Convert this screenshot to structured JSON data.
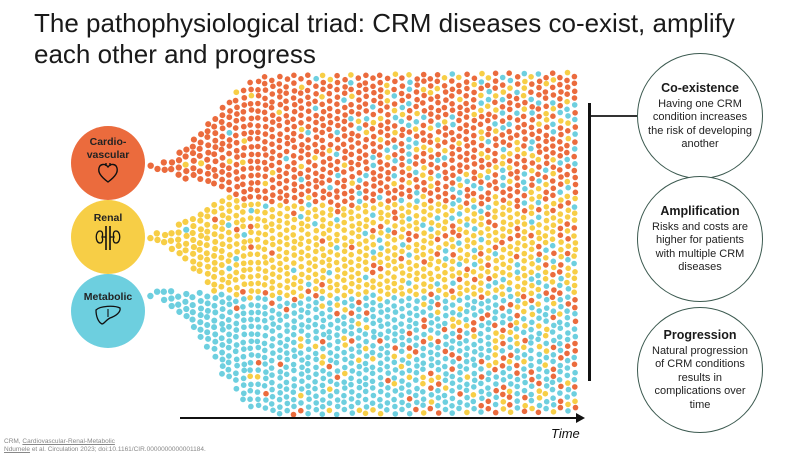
{
  "title": "The pathophysiological triad: CRM diseases co-exist, amplify each other and progress",
  "colors": {
    "cardiovascular": "#EB6B3D",
    "renal": "#F7CE46",
    "metabolic": "#6DCFDF",
    "card_border": "#3C5A50"
  },
  "streams": [
    {
      "label": "Cardio-\nvascular",
      "icon": "heart-icon",
      "color": "#EB6B3D"
    },
    {
      "label": "Renal",
      "icon": "kidneys-icon",
      "color": "#F7CE46"
    },
    {
      "label": "Metabolic",
      "icon": "liver-icon",
      "color": "#6DCFDF"
    }
  ],
  "callouts": [
    {
      "title": "Co-existence",
      "text": "Having one CRM condition increases the risk of developing another"
    },
    {
      "title": "Amplification",
      "text": "Risks and costs are higher for patients with multiple CRM diseases"
    },
    {
      "title": "Progression",
      "text": "Natural progression of CRM conditions results in complications over time"
    }
  ],
  "axis_label": "Time",
  "footnote": {
    "line1_prefix": "CRM, ",
    "line1_link": "Cardiovascular-Renal-Metabolic",
    "line2_link": "Ndumele",
    "line2_rest": " et al. Circulation 2023; doi:10.1161/CIR.0000000000001184."
  }
}
